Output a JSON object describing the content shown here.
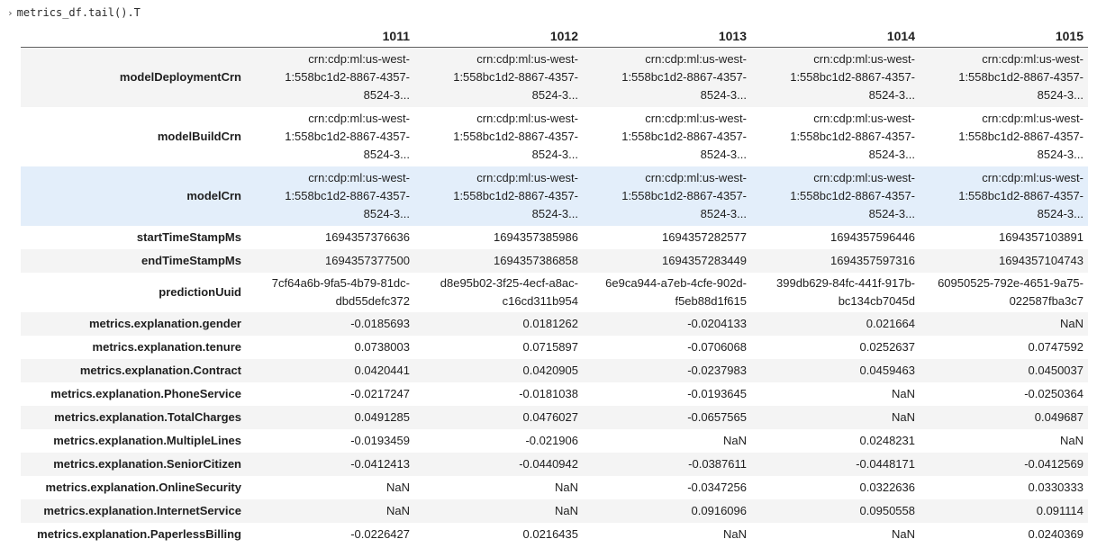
{
  "cell": {
    "code": "metrics_df.tail().T",
    "chevron": "›"
  },
  "table": {
    "columns": [
      "1011",
      "1012",
      "1013",
      "1014",
      "1015"
    ],
    "rows": [
      {
        "label": "modelDeploymentCrn",
        "values": [
          [
            "crn:cdp:ml:us-west-",
            "1:558bc1d2-8867-4357-",
            "8524-3..."
          ],
          [
            "crn:cdp:ml:us-west-",
            "1:558bc1d2-8867-4357-",
            "8524-3..."
          ],
          [
            "crn:cdp:ml:us-west-",
            "1:558bc1d2-8867-4357-",
            "8524-3..."
          ],
          [
            "crn:cdp:ml:us-west-",
            "1:558bc1d2-8867-4357-",
            "8524-3..."
          ],
          [
            "crn:cdp:ml:us-west-",
            "1:558bc1d2-8867-4357-",
            "8524-3..."
          ]
        ]
      },
      {
        "label": "modelBuildCrn",
        "values": [
          [
            "crn:cdp:ml:us-west-",
            "1:558bc1d2-8867-4357-",
            "8524-3..."
          ],
          [
            "crn:cdp:ml:us-west-",
            "1:558bc1d2-8867-4357-",
            "8524-3..."
          ],
          [
            "crn:cdp:ml:us-west-",
            "1:558bc1d2-8867-4357-",
            "8524-3..."
          ],
          [
            "crn:cdp:ml:us-west-",
            "1:558bc1d2-8867-4357-",
            "8524-3..."
          ],
          [
            "crn:cdp:ml:us-west-",
            "1:558bc1d2-8867-4357-",
            "8524-3..."
          ]
        ]
      },
      {
        "label": "modelCrn",
        "values": [
          [
            "crn:cdp:ml:us-west-",
            "1:558bc1d2-8867-4357-",
            "8524-3..."
          ],
          [
            "crn:cdp:ml:us-west-",
            "1:558bc1d2-8867-4357-",
            "8524-3..."
          ],
          [
            "crn:cdp:ml:us-west-",
            "1:558bc1d2-8867-4357-",
            "8524-3..."
          ],
          [
            "crn:cdp:ml:us-west-",
            "1:558bc1d2-8867-4357-",
            "8524-3..."
          ],
          [
            "crn:cdp:ml:us-west-",
            "1:558bc1d2-8867-4357-",
            "8524-3..."
          ]
        ]
      },
      {
        "label": "startTimeStampMs",
        "values": [
          [
            "1694357376636"
          ],
          [
            "1694357385986"
          ],
          [
            "1694357282577"
          ],
          [
            "1694357596446"
          ],
          [
            "1694357103891"
          ]
        ]
      },
      {
        "label": "endTimeStampMs",
        "values": [
          [
            "1694357377500"
          ],
          [
            "1694357386858"
          ],
          [
            "1694357283449"
          ],
          [
            "1694357597316"
          ],
          [
            "1694357104743"
          ]
        ]
      },
      {
        "label": "predictionUuid",
        "values": [
          [
            "7cf64a6b-9fa5-4b79-81dc-",
            "dbd55defc372"
          ],
          [
            "d8e95b02-3f25-4ecf-a8ac-",
            "c16cd311b954"
          ],
          [
            "6e9ca944-a7eb-4cfe-902d-",
            "f5eb88d1f615"
          ],
          [
            "399db629-84fc-441f-917b-",
            "bc134cb7045d"
          ],
          [
            "60950525-792e-4651-9a75-",
            "022587fba3c7"
          ]
        ]
      },
      {
        "label": "metrics.explanation.gender",
        "values": [
          [
            "-0.0185693"
          ],
          [
            "0.0181262"
          ],
          [
            "-0.0204133"
          ],
          [
            "0.021664"
          ],
          [
            "NaN"
          ]
        ]
      },
      {
        "label": "metrics.explanation.tenure",
        "values": [
          [
            "0.0738003"
          ],
          [
            "0.0715897"
          ],
          [
            "-0.0706068"
          ],
          [
            "0.0252637"
          ],
          [
            "0.0747592"
          ]
        ]
      },
      {
        "label": "metrics.explanation.Contract",
        "values": [
          [
            "0.0420441"
          ],
          [
            "0.0420905"
          ],
          [
            "-0.0237983"
          ],
          [
            "0.0459463"
          ],
          [
            "0.0450037"
          ]
        ]
      },
      {
        "label": "metrics.explanation.PhoneService",
        "values": [
          [
            "-0.0217247"
          ],
          [
            "-0.0181038"
          ],
          [
            "-0.0193645"
          ],
          [
            "NaN"
          ],
          [
            "-0.0250364"
          ]
        ]
      },
      {
        "label": "metrics.explanation.TotalCharges",
        "values": [
          [
            "0.0491285"
          ],
          [
            "0.0476027"
          ],
          [
            "-0.0657565"
          ],
          [
            "NaN"
          ],
          [
            "0.049687"
          ]
        ]
      },
      {
        "label": "metrics.explanation.MultipleLines",
        "values": [
          [
            "-0.0193459"
          ],
          [
            "-0.021906"
          ],
          [
            "NaN"
          ],
          [
            "0.0248231"
          ],
          [
            "NaN"
          ]
        ]
      },
      {
        "label": "metrics.explanation.SeniorCitizen",
        "values": [
          [
            "-0.0412413"
          ],
          [
            "-0.0440942"
          ],
          [
            "-0.0387611"
          ],
          [
            "-0.0448171"
          ],
          [
            "-0.0412569"
          ]
        ]
      },
      {
        "label": "metrics.explanation.OnlineSecurity",
        "values": [
          [
            "NaN"
          ],
          [
            "NaN"
          ],
          [
            "-0.0347256"
          ],
          [
            "0.0322636"
          ],
          [
            "0.0330333"
          ]
        ]
      },
      {
        "label": "metrics.explanation.InternetService",
        "values": [
          [
            "NaN"
          ],
          [
            "NaN"
          ],
          [
            "0.0916096"
          ],
          [
            "0.0950558"
          ],
          [
            "0.091114"
          ]
        ]
      },
      {
        "label": "metrics.explanation.PaperlessBilling",
        "values": [
          [
            "-0.0226427"
          ],
          [
            "0.0216435"
          ],
          [
            "NaN"
          ],
          [
            "NaN"
          ],
          [
            "0.0240369"
          ]
        ]
      }
    ],
    "hovered_row": "modelCrn"
  },
  "colors": {
    "row_stripe": "#f4f4f4",
    "row_hover": "#e3eefa",
    "header_rule": "#5f5f5f"
  }
}
